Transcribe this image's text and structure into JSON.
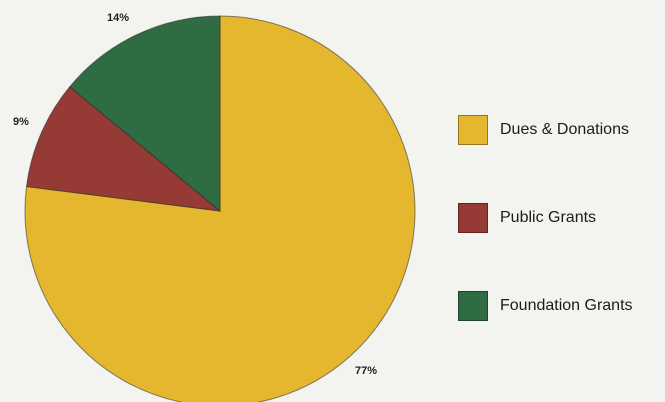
{
  "chart_data": {
    "type": "pie",
    "categories": [
      "Dues & Donations",
      "Public Grants",
      "Foundation Grants"
    ],
    "values": [
      77,
      9,
      14
    ],
    "labels": [
      "77%",
      "9%",
      "14%"
    ],
    "colors": {
      "Dues & Donations": "#e4b72e",
      "Public Grants": "#953a35",
      "Foundation Grants": "#2f6c43"
    },
    "legend_placement": "right"
  }
}
